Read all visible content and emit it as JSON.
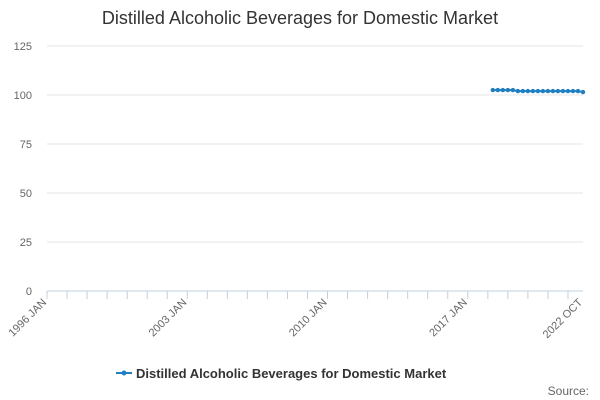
{
  "chart_data": {
    "type": "line",
    "title": "Distilled Alcoholic Beverages for Domestic Market",
    "xlabel": "",
    "ylabel": "",
    "x_tick_labels": [
      "1996 JAN",
      "2003 JAN",
      "2010 JAN",
      "2017 JAN",
      "2022 OCT"
    ],
    "x_tick_values": [
      1996.0,
      2003.0,
      2010.0,
      2017.0,
      2022.75
    ],
    "xlim": [
      1996.0,
      2022.75
    ],
    "ylim": [
      0,
      125
    ],
    "y_ticks": [
      0,
      25,
      50,
      75,
      100,
      125
    ],
    "y_tick_labels": [
      "0",
      "25",
      "50",
      "75",
      "100",
      "125"
    ],
    "grid": "horizontal",
    "legend_position": "bottom",
    "series": [
      {
        "name": "Distilled Alcoholic Beverages for Domestic Market",
        "color": "#1f7fc0",
        "x": [
          2018.25,
          2018.5,
          2018.75,
          2019.0,
          2019.25,
          2019.5,
          2019.75,
          2020.0,
          2020.25,
          2020.5,
          2020.75,
          2021.0,
          2021.25,
          2021.5,
          2021.75,
          2022.0,
          2022.25,
          2022.5,
          2022.75
        ],
        "y": [
          102.5,
          102.5,
          102.5,
          102.5,
          102.5,
          102.0,
          102.0,
          102.0,
          102.0,
          102.0,
          102.0,
          102.0,
          102.0,
          102.0,
          102.0,
          102.0,
          102.0,
          102.0,
          101.5
        ]
      }
    ]
  },
  "source_label": "Source:"
}
